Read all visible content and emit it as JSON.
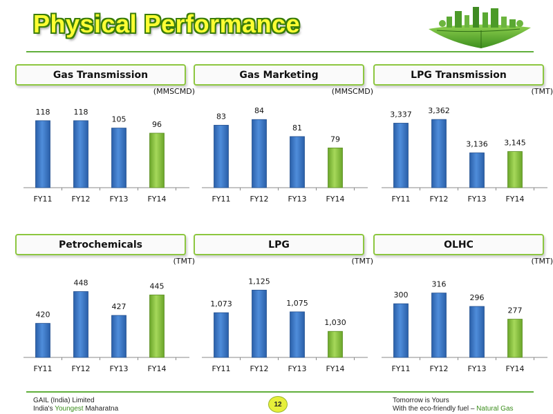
{
  "title": "Physical Performance",
  "colors": {
    "blue_bar": "#3b78c8",
    "green_bar": "#8cc63f",
    "accent": "#5fae3a"
  },
  "chart_data": [
    {
      "type": "bar",
      "title": "Gas Transmission",
      "unit": "(MMSCMD)",
      "categories": [
        "FY11",
        "FY12",
        "FY13",
        "FY14"
      ],
      "values": [
        118,
        118,
        105,
        96
      ],
      "labels": [
        "118",
        "118",
        "105",
        "96"
      ],
      "ylim": [
        0,
        130
      ]
    },
    {
      "type": "bar",
      "title": "Gas Marketing",
      "unit": "(MMSCMD)",
      "categories": [
        "FY11",
        "FY12",
        "FY13",
        "FY14"
      ],
      "values": [
        83,
        84,
        81,
        79
      ],
      "labels": [
        "83",
        "84",
        "81",
        "79"
      ],
      "ylim": [
        72,
        85
      ]
    },
    {
      "type": "bar",
      "title": "LPG Transmission",
      "unit": "(TMT)",
      "categories": [
        "FY11",
        "FY12",
        "FY13",
        "FY14"
      ],
      "values": [
        3337,
        3362,
        3136,
        3145
      ],
      "labels": [
        "3,337",
        "3,362",
        "3,136",
        "3,145"
      ],
      "ylim": [
        2900,
        3400
      ]
    },
    {
      "type": "bar",
      "title": "Petrochemicals",
      "unit": "(TMT)",
      "categories": [
        "FY11",
        "FY12",
        "FY13",
        "FY14"
      ],
      "values": [
        420,
        448,
        427,
        445
      ],
      "labels": [
        "420",
        "448",
        "427",
        "445"
      ],
      "ylim": [
        390,
        455
      ]
    },
    {
      "type": "bar",
      "title": "LPG",
      "unit": "(TMT)",
      "categories": [
        "FY11",
        "FY12",
        "FY13",
        "FY14"
      ],
      "values": [
        1073,
        1125,
        1075,
        1030
      ],
      "labels": [
        "1,073",
        "1,125",
        "1,075",
        "1,030"
      ],
      "ylim": [
        970,
        1140
      ]
    },
    {
      "type": "bar",
      "title": "OLHC",
      "unit": "(TMT)",
      "categories": [
        "FY11",
        "FY12",
        "FY13",
        "FY14"
      ],
      "values": [
        300,
        316,
        296,
        277
      ],
      "labels": [
        "300",
        "316",
        "296",
        "277"
      ],
      "ylim": [
        220,
        330
      ]
    }
  ],
  "footer": {
    "company": "GAIL (India) Limited",
    "line2_pre": "India's ",
    "line2_hl": "Youngest",
    "line2_post": " Maharatna",
    "page": "12",
    "tagline": "Tomorrow is Yours",
    "tagline2_pre": "With the eco-friendly fuel – ",
    "tagline2_hl": "Natural Gas"
  }
}
